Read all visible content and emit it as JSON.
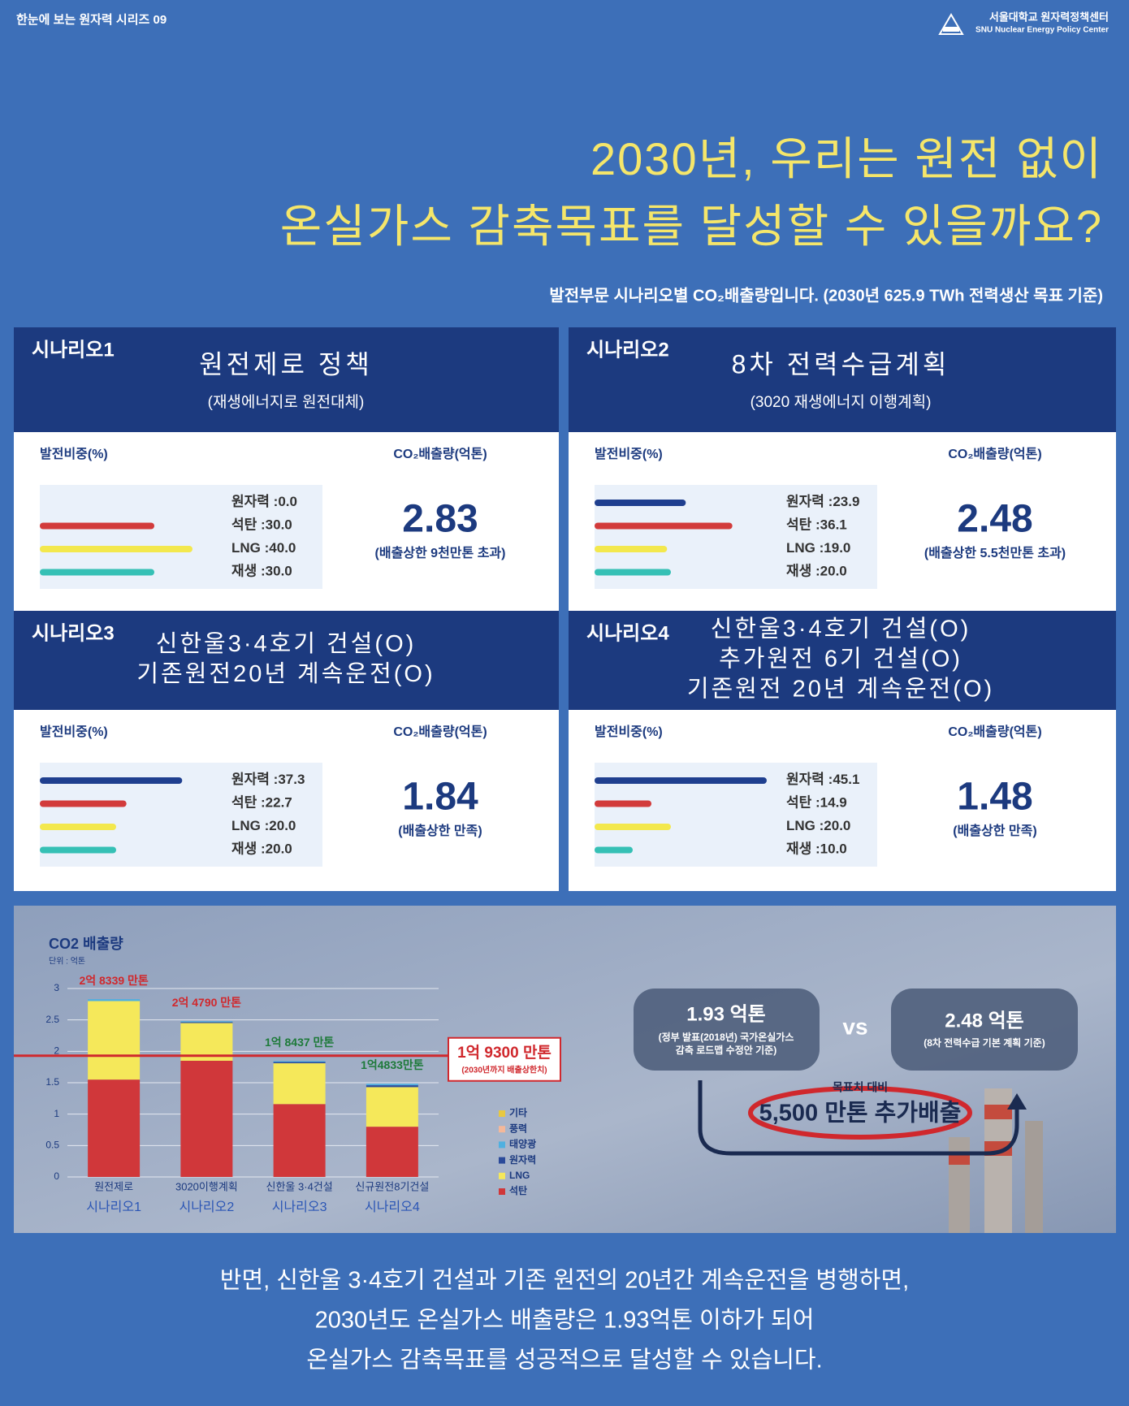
{
  "header": {
    "series": "한눈에 보는 원자력 시리즈 09",
    "org_ko": "서울대학교 원자력정책센터",
    "org_en": "SNU Nuclear Energy Policy Center"
  },
  "title_lines": [
    "2030년, 우리는 원전 없이",
    "온실가스 감축목표를 달성할 수 있을까요?"
  ],
  "subtitle": "발전부문 시나리오별 CO₂배출량입니다. (2030년 625.9 TWh 전력생산 목표 기준)",
  "share_colors": [
    "#1f3f8f",
    "#d23b3b",
    "#f3e84d",
    "#35c0b5"
  ],
  "scenarios": [
    {
      "label": "시나리오1",
      "title_lines": [
        "원전제로 정책"
      ],
      "note": "(재생에너지로 원전대체)",
      "share_label": "발전비중(%)",
      "emission_label": "CO₂배출량(억톤)",
      "shares": {
        "names": [
          "원자력 :",
          "석탄 :",
          "LNG :",
          "재생 :"
        ],
        "values": [
          0.0,
          30.0,
          40.0,
          30.0
        ],
        "value_labels": [
          "0.0",
          "30.0",
          "40.0",
          "30.0"
        ]
      },
      "emission": 2.83,
      "emission_note": "(배출상한 9천만톤 초과)"
    },
    {
      "label": "시나리오2",
      "title_lines": [
        "8차 전력수급계획"
      ],
      "note": "(3020 재생에너지 이행계획)",
      "share_label": "발전비중(%)",
      "emission_label": "CO₂배출량(억톤)",
      "shares": {
        "names": [
          "원자력 :",
          "석탄 :",
          "LNG :",
          "재생 :"
        ],
        "values": [
          23.9,
          36.1,
          19.0,
          20.0
        ],
        "value_labels": [
          "23.9",
          "36.1",
          "19.0",
          "20.0"
        ]
      },
      "emission": 2.48,
      "emission_note": "(배출상한 5.5천만톤 초과)"
    },
    {
      "label": "시나리오3",
      "title_lines": [
        "신한울3·4호기 건설(O)",
        "기존원전20년 계속운전(O)"
      ],
      "share_label": "발전비중(%)",
      "emission_label": "CO₂배출량(억톤)",
      "shares": {
        "names": [
          "원자력 :",
          "석탄 :",
          "LNG :",
          "재생 :"
        ],
        "values": [
          37.3,
          22.7,
          20.0,
          20.0
        ],
        "value_labels": [
          "37.3",
          "22.7",
          "20.0",
          "20.0"
        ]
      },
      "emission": 1.84,
      "emission_note": "(배출상한 만족)"
    },
    {
      "label": "시나리오4",
      "title_lines": [
        "신한울3·4호기 건설(O)",
        "추가원전 6기 건설(O)",
        "기존원전 20년 계속운전(O)"
      ],
      "share_label": "발전비중(%)",
      "emission_label": "CO₂배출량(억톤)",
      "shares": {
        "names": [
          "원자력 :",
          "석탄 :",
          "LNG :",
          "재생 :"
        ],
        "values": [
          45.1,
          14.9,
          20.0,
          10.0
        ],
        "value_labels": [
          "45.1",
          "14.9",
          "20.0",
          "10.0"
        ]
      },
      "emission": 1.48,
      "emission_note": "(배출상한 만족)"
    }
  ],
  "chart_data": {
    "type": "stacked_bar",
    "title": "CO2 배출량",
    "unit": "단위 : 억톤",
    "categories": [
      "원전제로",
      "3020이행계획",
      "신한울 3·4건설",
      "신규원전8기건설"
    ],
    "scenario_labels": [
      "시나리오1",
      "시나리오2",
      "시나리오3",
      "시나리오4"
    ],
    "series": [
      {
        "name": "석탄",
        "color": "#d0373a",
        "values": [
          1.55,
          1.85,
          1.16,
          0.8
        ]
      },
      {
        "name": "LNG",
        "color": "#f5e85a",
        "values": [
          1.25,
          0.6,
          0.65,
          0.63
        ]
      },
      {
        "name": "원자력",
        "color": "#2b4a9a",
        "values": [
          0,
          0.015,
          0.02,
          0.03
        ]
      },
      {
        "name": "태양광",
        "color": "#4fb0e0",
        "values": [
          0.03,
          0.014,
          0.014,
          0.023
        ]
      },
      {
        "name": "풍력",
        "color": "#f4b89a",
        "values": [
          0,
          0,
          0,
          0
        ]
      },
      {
        "name": "기타",
        "color": "#e8c840",
        "values": [
          0,
          0,
          0,
          0
        ]
      }
    ],
    "total_labels": [
      "2억 8339 만톤",
      "2억 4790 만톤",
      "1억 8437 만톤",
      "1억4833만톤"
    ],
    "total_label_colors": [
      "#d0282d",
      "#d0282d",
      "#1e7a3a",
      "#1e7a3a"
    ],
    "target": {
      "value": 1.93,
      "label": "1억 9300 만톤",
      "note": "(2030년까지 배출상한치)",
      "color": "#d0282d"
    },
    "ylim": [
      0,
      3
    ],
    "yticks": [
      0,
      0.5,
      1,
      1.5,
      2,
      2.5,
      3
    ],
    "grid": true
  },
  "comparison": {
    "left_value": "1.93 억톤",
    "left_note_lines": [
      "(정부 발표(2018년) 국가온실가스",
      "감축 로드맵 수정안 기준)"
    ],
    "vs": "vs",
    "right_value": "2.48 억톤",
    "right_note": "(8차 전력수급 기본 계획 기준)",
    "gap_label": "목표치 대비",
    "gap_value": "5,500 만톤 추가배출"
  },
  "footer_lines": [
    "반면, 신한울 3·4호기 건설과 기존 원전의 20년간 계속운전을 병행하면,",
    "2030년도 온실가스 배출량은 1.93억톤 이하가 되어",
    "온실가스 감축목표를 성공적으로 달성할 수 있습니다."
  ]
}
